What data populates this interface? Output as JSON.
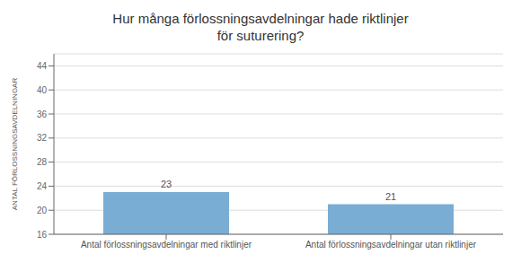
{
  "chart_data": {
    "type": "bar",
    "title": "Hur många förlossningsavdelningar hade riktlinjer\nför suturering?",
    "ylabel": "ANTAL FÖRLOSSNINGSAVDELNINGAR",
    "categories": [
      "Antal förlossningsavdelningar med riktlinjer",
      "Antal förlossningsavdelningar utan riktlinjer"
    ],
    "values": [
      23,
      21
    ],
    "color": "#7aadd4",
    "ylim": [
      16,
      46
    ],
    "yticks": [
      16,
      20,
      24,
      28,
      32,
      36,
      40,
      44
    ],
    "grid": true,
    "data_labels": true
  }
}
